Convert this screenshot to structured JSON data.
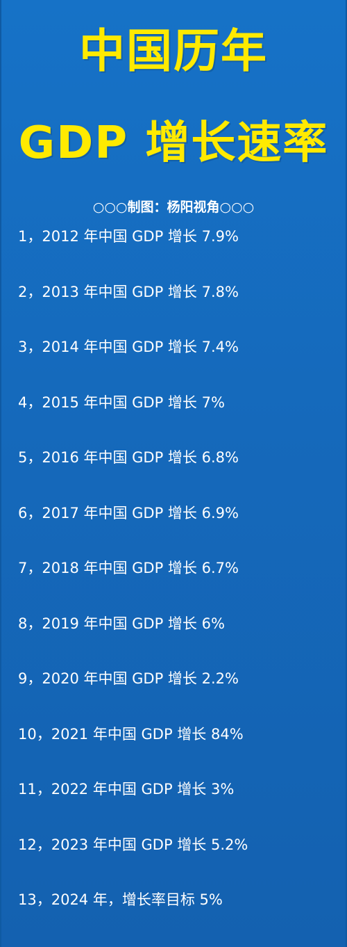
{
  "header": {
    "title_line1": "中国历年",
    "title_line2": "GDP 增长速率",
    "credit": "○○○制图：杨阳视角○○○"
  },
  "items": [
    "1，2012 年中国 GDP 增长 7.9%",
    "2，2013 年中国 GDP 增长 7.8%",
    "3，2014 年中国 GDP 增长 7.4%",
    "4，2015 年中国 GDP 增长 7%",
    "5，2016 年中国 GDP 增长 6.8%",
    "6，2017 年中国 GDP 增长 6.9%",
    "7，2018 年中国 GDP 增长 6.7%",
    "8，2019 年中国 GDP 增长 6%",
    "9，2020 年中国 GDP 增长 2.2%",
    "10，2021 年中国 GDP 增长 84%",
    "11，2022 年中国 GDP 增长 3%",
    "12，2023 年中国 GDP 增长 5.2%",
    "13，2024 年，增长率目标 5%"
  ],
  "colors": {
    "background": "#1569bb",
    "title": "#ffea00",
    "text": "#ffffff"
  }
}
